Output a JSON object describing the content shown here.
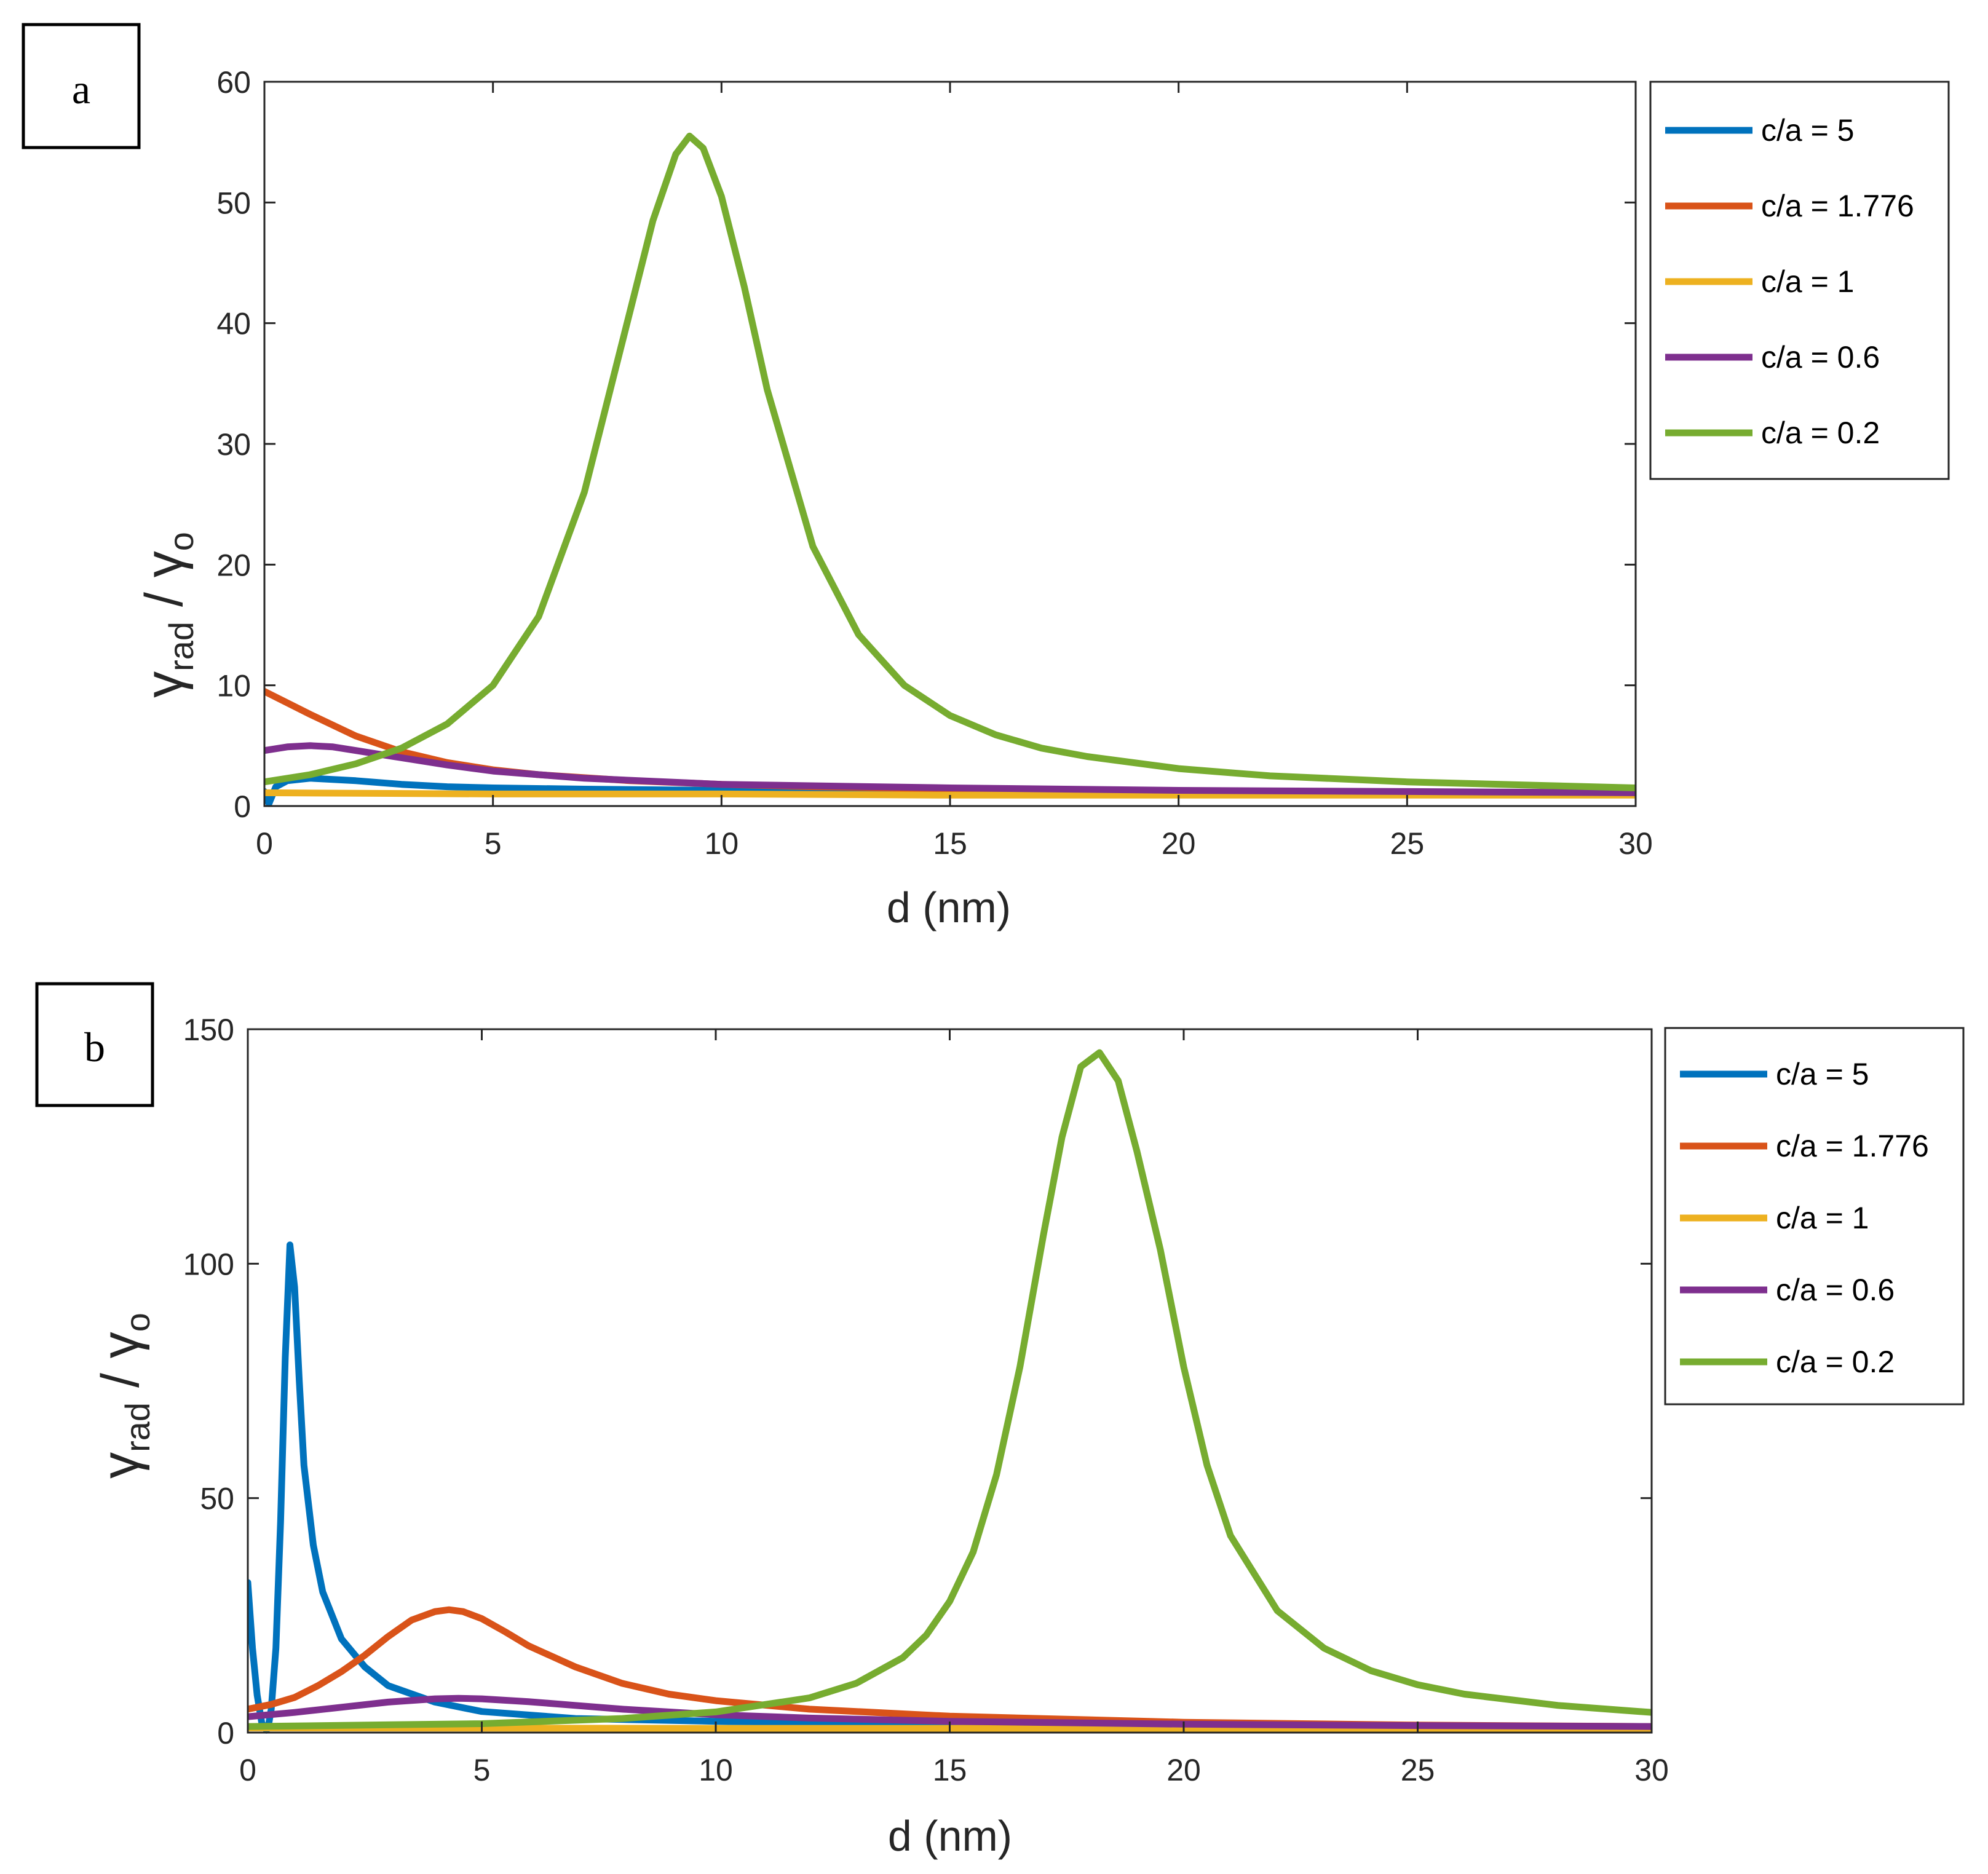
{
  "chart_data": [
    {
      "type": "line",
      "panel_label": "a",
      "xlabel": "d (nm)",
      "ylabel": {
        "main": "γ",
        "sub": "rad",
        "sep": " / ",
        "main2": "γ",
        "sub2": "o"
      },
      "xlim": [
        0,
        30
      ],
      "ylim": [
        0,
        60
      ],
      "xticks": [
        0,
        5,
        10,
        15,
        20,
        25,
        30
      ],
      "yticks": [
        0,
        10,
        20,
        30,
        40,
        50,
        60
      ],
      "legend_position": "outside-right",
      "series": [
        {
          "name": "c/a = 5",
          "color": "#0072BD",
          "x": [
            0,
            0.1,
            0.25,
            0.5,
            1,
            2,
            3,
            4,
            5,
            7,
            10,
            15,
            20,
            25,
            30
          ],
          "y": [
            1.2,
            0.2,
            1.6,
            2.1,
            2.3,
            2.1,
            1.8,
            1.6,
            1.5,
            1.4,
            1.3,
            1.2,
            1.2,
            1.1,
            1.1
          ]
        },
        {
          "name": "c/a = 1.776",
          "color": "#D95319",
          "x": [
            0,
            1,
            2,
            3,
            4,
            5,
            6,
            8,
            10,
            12,
            15,
            20,
            25,
            30
          ],
          "y": [
            9.5,
            7.6,
            5.8,
            4.5,
            3.6,
            3.0,
            2.6,
            2.1,
            1.8,
            1.6,
            1.4,
            1.2,
            1.1,
            1.0
          ]
        },
        {
          "name": "c/a = 1",
          "color": "#EDB120",
          "x": [
            0,
            5,
            10,
            15,
            20,
            25,
            30
          ],
          "y": [
            1.1,
            1.0,
            1.0,
            0.9,
            0.9,
            0.9,
            0.9
          ]
        },
        {
          "name": "c/a = 0.6",
          "color": "#7E2F8E",
          "x": [
            0,
            0.5,
            1,
            1.5,
            2,
            3,
            4,
            5,
            7,
            10,
            15,
            20,
            25,
            30
          ],
          "y": [
            4.6,
            4.9,
            5.0,
            4.9,
            4.6,
            4.0,
            3.4,
            2.9,
            2.3,
            1.8,
            1.5,
            1.3,
            1.2,
            1.1
          ]
        },
        {
          "name": "c/a = 0.2",
          "color": "#77AC30",
          "x": [
            0,
            1,
            2,
            3,
            4,
            5,
            6,
            7,
            8,
            8.5,
            9,
            9.3,
            9.6,
            10,
            10.5,
            11,
            12,
            13,
            14,
            15,
            16,
            17,
            18,
            20,
            22,
            25,
            28,
            30
          ],
          "y": [
            2.0,
            2.6,
            3.5,
            4.8,
            6.8,
            10.0,
            15.7,
            26.0,
            41.0,
            48.5,
            54.0,
            55.5,
            54.5,
            50.5,
            43.0,
            34.5,
            21.5,
            14.2,
            10.0,
            7.5,
            5.9,
            4.8,
            4.1,
            3.1,
            2.5,
            2.0,
            1.7,
            1.5
          ]
        }
      ]
    },
    {
      "type": "line",
      "panel_label": "b",
      "xlabel": "d (nm)",
      "ylabel": {
        "main": "γ",
        "sub": "rad",
        "sep": " / ",
        "main2": "γ",
        "sub2": "o"
      },
      "xlim": [
        0,
        30
      ],
      "ylim": [
        0,
        150
      ],
      "xticks": [
        0,
        5,
        10,
        15,
        20,
        25,
        30
      ],
      "yticks": [
        0,
        50,
        100,
        150
      ],
      "legend_position": "outside-right",
      "series": [
        {
          "name": "c/a = 5",
          "color": "#0072BD",
          "x": [
            0,
            0.1,
            0.2,
            0.3,
            0.4,
            0.45,
            0.5,
            0.6,
            0.7,
            0.8,
            0.9,
            1.0,
            1.1,
            1.2,
            1.4,
            1.6,
            2,
            2.5,
            3,
            4,
            5,
            7,
            10,
            15,
            20,
            30
          ],
          "y": [
            32,
            18,
            8,
            2,
            0.5,
            2,
            5,
            18,
            45,
            80,
            104,
            95,
            75,
            57,
            40,
            30,
            20,
            14,
            10,
            6.5,
            4.5,
            3.0,
            2.4,
            1.8,
            1.5,
            1.2
          ]
        },
        {
          "name": "c/a = 1.776",
          "color": "#D95319",
          "x": [
            0,
            0.5,
            1,
            1.5,
            2,
            2.5,
            3,
            3.5,
            4,
            4.3,
            4.6,
            5,
            5.5,
            6,
            7,
            8,
            9,
            10,
            12,
            15,
            20,
            25,
            30
          ],
          "y": [
            5,
            6,
            7.5,
            10,
            13,
            16.5,
            20.5,
            24,
            25.8,
            26.2,
            25.8,
            24.3,
            21.5,
            18.5,
            14,
            10.5,
            8.2,
            6.8,
            5.0,
            3.5,
            2.2,
            1.6,
            1.3
          ]
        },
        {
          "name": "c/a = 1",
          "color": "#EDB120",
          "x": [
            0,
            10,
            20,
            30
          ],
          "y": [
            1.0,
            0.9,
            0.9,
            0.8
          ]
        },
        {
          "name": "c/a = 0.6",
          "color": "#7E2F8E",
          "x": [
            0,
            1,
            2,
            3,
            4,
            4.5,
            5,
            6,
            7,
            8,
            10,
            12,
            15,
            20,
            25,
            30
          ],
          "y": [
            3.4,
            4.3,
            5.4,
            6.5,
            7.2,
            7.3,
            7.2,
            6.6,
            5.8,
            5.0,
            3.8,
            3.1,
            2.4,
            1.8,
            1.5,
            1.3
          ]
        },
        {
          "name": "c/a = 0.2",
          "color": "#77AC30",
          "x": [
            0,
            5,
            8,
            10,
            12,
            13,
            14,
            14.5,
            15,
            15.5,
            16,
            16.5,
            17,
            17.4,
            17.8,
            18.2,
            18.6,
            19,
            19.5,
            20,
            20.5,
            21,
            22,
            23,
            24,
            25,
            26,
            28,
            30
          ],
          "y": [
            1.3,
            1.9,
            3.0,
            4.4,
            7.4,
            10.5,
            16.0,
            20.8,
            28.0,
            38.5,
            55.0,
            78.0,
            106.0,
            127.0,
            142.0,
            145.0,
            139.0,
            124.0,
            103.0,
            78.0,
            57.0,
            42.0,
            26.0,
            18.0,
            13.2,
            10.2,
            8.2,
            5.8,
            4.3
          ]
        }
      ]
    }
  ]
}
